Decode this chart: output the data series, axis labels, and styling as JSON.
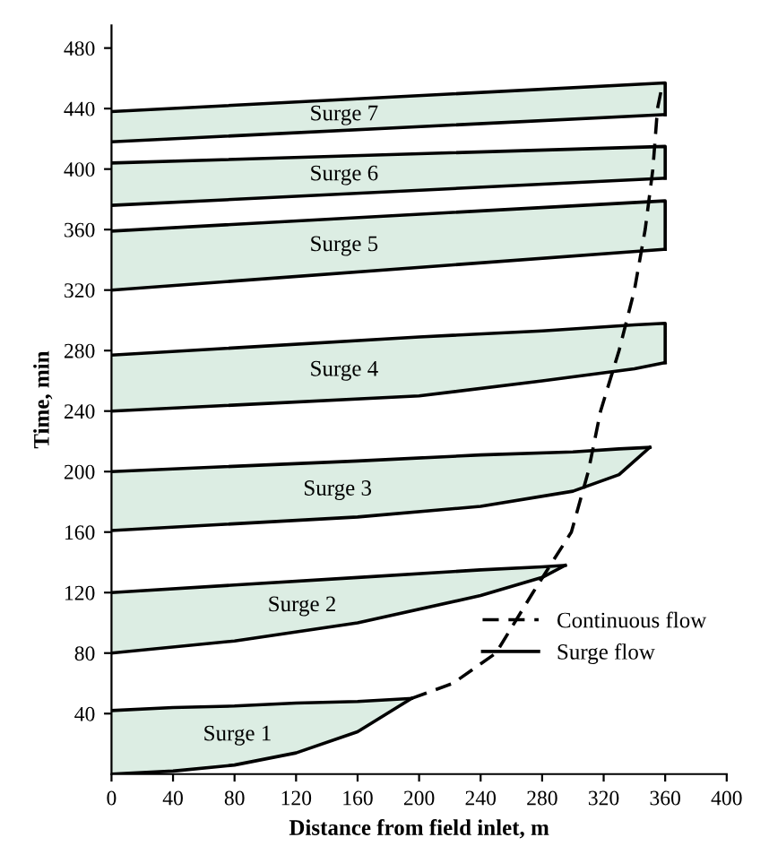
{
  "chart_data": {
    "type": "line",
    "xlabel": "Distance from field inlet, m",
    "ylabel": "Time, min",
    "xlim": [
      0,
      400
    ],
    "ylim": [
      0,
      495
    ],
    "xticks": [
      0,
      40,
      80,
      120,
      160,
      200,
      240,
      280,
      320,
      360,
      400
    ],
    "yticks": [
      40,
      80,
      120,
      160,
      200,
      240,
      280,
      320,
      360,
      400,
      440,
      480
    ],
    "grid": false,
    "legend": "bottom right",
    "series": [
      {
        "name": "Surge flow",
        "color": "#000000",
        "x": [
          0,
          40,
          80,
          120,
          160,
          195
        ],
        "values": [
          42,
          44,
          45,
          47,
          48,
          50
        ]
      },
      {
        "color": "#000000",
        "x": [
          0,
          40,
          80,
          120,
          160,
          195
        ],
        "values": [
          0,
          2,
          6,
          14,
          28,
          50
        ]
      },
      {
        "color": "#000000",
        "x": [
          0,
          80,
          160,
          240,
          280,
          295
        ],
        "values": [
          120,
          125,
          130,
          135,
          137,
          138
        ]
      },
      {
        "color": "#000000",
        "x": [
          0,
          80,
          160,
          240,
          280,
          295
        ],
        "values": [
          80,
          88,
          100,
          118,
          130,
          138
        ]
      },
      {
        "color": "#000000",
        "x": [
          0,
          160,
          240,
          300,
          330,
          350
        ],
        "values": [
          200,
          207,
          211,
          213,
          215,
          216
        ]
      },
      {
        "color": "#000000",
        "x": [
          0,
          160,
          240,
          300,
          330,
          350
        ],
        "values": [
          161,
          170,
          177,
          187,
          198,
          216
        ]
      },
      {
        "color": "#000000",
        "x": [
          0,
          200,
          280,
          340,
          360,
          360
        ],
        "values": [
          277,
          289,
          293,
          297,
          298,
          272
        ]
      },
      {
        "color": "#000000",
        "x": [
          0,
          200,
          280,
          340,
          360
        ],
        "values": [
          240,
          250,
          260,
          268,
          272
        ]
      },
      {
        "color": "#000000",
        "x": [
          0,
          360,
          360
        ],
        "values": [
          359,
          379,
          347
        ]
      },
      {
        "color": "#000000",
        "x": [
          0,
          360
        ],
        "values": [
          320,
          347
        ]
      },
      {
        "color": "#000000",
        "x": [
          0,
          360,
          360
        ],
        "values": [
          404,
          415,
          394
        ]
      },
      {
        "color": "#000000",
        "x": [
          0,
          360
        ],
        "values": [
          376,
          394
        ]
      },
      {
        "color": "#000000",
        "x": [
          0,
          360,
          360
        ],
        "values": [
          438,
          457,
          436
        ]
      },
      {
        "color": "#000000",
        "x": [
          0,
          360
        ],
        "values": [
          418,
          436
        ]
      },
      {
        "name": "Continuous flow",
        "line_style": "dashed",
        "color": "#000000",
        "x": [
          195,
          222,
          250,
          274,
          299,
          310,
          318,
          330,
          340,
          347,
          352,
          355,
          358
        ],
        "values": [
          50,
          60,
          80,
          120,
          160,
          200,
          240,
          280,
          320,
          360,
          400,
          440,
          455
        ]
      }
    ],
    "annotations": [
      "Surge 1",
      "Surge 2",
      "Surge 3",
      "Surge 4",
      "Surge 5",
      "Surge 6",
      "Surge 7"
    ]
  }
}
